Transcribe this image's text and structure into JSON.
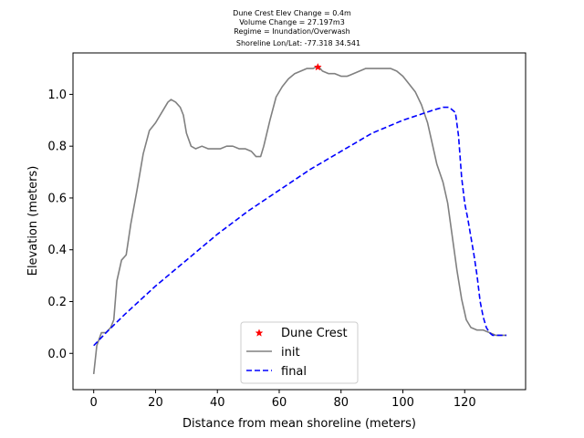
{
  "chart_data": {
    "type": "line",
    "title_lines": [
      "Dune Crest Elev Change = 0.4m",
      "Volume Change = 27.197m3",
      "Regime = Inundation/Overwash",
      "Shoreline Lon/Lat: -77.318 34.541"
    ],
    "xlabel": "Distance from mean shoreline (meters)",
    "ylabel": "Elevation (meters)",
    "xlim": [
      -6.7,
      139.7
    ],
    "ylim": [
      -0.14,
      1.16
    ],
    "xticks": [
      0,
      20,
      40,
      60,
      80,
      100,
      120
    ],
    "yticks": [
      0.0,
      0.2,
      0.4,
      0.6,
      0.8,
      1.0
    ],
    "xtick_labels": [
      "0",
      "20",
      "40",
      "60",
      "80",
      "100",
      "120"
    ],
    "ytick_labels": [
      "0.0",
      "0.2",
      "0.4",
      "0.6",
      "0.8",
      "1.0"
    ],
    "grid": false,
    "legend_position": "lower center",
    "legend": [
      {
        "label": "Dune Crest",
        "color": "#ff0000",
        "marker": "star"
      },
      {
        "label": "init",
        "color": "#808080",
        "style": "solid"
      },
      {
        "label": "final",
        "color": "#0000ff",
        "style": "dashed"
      }
    ],
    "series": [
      {
        "name": "init",
        "color": "#808080",
        "style": "solid",
        "x": [
          0,
          1,
          2.5,
          4,
          5.5,
          6.5,
          7.5,
          9,
          10.5,
          12,
          14,
          16,
          18,
          20,
          22,
          24,
          25,
          26.5,
          28,
          29,
          30,
          31.5,
          33,
          35,
          37,
          39,
          41,
          43,
          45,
          47,
          49,
          51,
          52.5,
          54,
          55,
          57,
          59,
          61,
          63,
          65,
          67,
          69,
          71,
          72.5,
          74,
          76,
          78,
          80,
          82,
          84,
          86,
          88,
          90,
          92,
          94,
          96,
          98,
          100,
          102,
          104,
          106,
          108,
          109.5,
          111,
          113,
          114.5,
          116,
          117.5,
          119,
          120.5,
          122,
          124,
          126,
          128,
          130,
          132,
          133.5
        ],
        "y": [
          -0.08,
          0.03,
          0.08,
          0.08,
          0.1,
          0.13,
          0.28,
          0.36,
          0.38,
          0.5,
          0.63,
          0.77,
          0.86,
          0.89,
          0.93,
          0.97,
          0.98,
          0.97,
          0.95,
          0.92,
          0.85,
          0.8,
          0.79,
          0.8,
          0.79,
          0.79,
          0.79,
          0.8,
          0.8,
          0.79,
          0.79,
          0.78,
          0.76,
          0.76,
          0.8,
          0.9,
          0.99,
          1.03,
          1.06,
          1.08,
          1.09,
          1.1,
          1.1,
          1.11,
          1.09,
          1.08,
          1.08,
          1.07,
          1.07,
          1.08,
          1.09,
          1.1,
          1.1,
          1.1,
          1.1,
          1.1,
          1.09,
          1.07,
          1.04,
          1.01,
          0.96,
          0.89,
          0.81,
          0.73,
          0.66,
          0.58,
          0.45,
          0.32,
          0.21,
          0.13,
          0.1,
          0.09,
          0.09,
          0.08,
          0.07,
          0.07,
          0.07
        ]
      },
      {
        "name": "final",
        "color": "#0000ff",
        "style": "dashed",
        "x": [
          0,
          4,
          10,
          20,
          30,
          40,
          50,
          60,
          70,
          80,
          90,
          100,
          105,
          110,
          113,
          115,
          117,
          118,
          119,
          120,
          121,
          122,
          123,
          124,
          125,
          126,
          127,
          128,
          129,
          130,
          131,
          132,
          133.5
        ],
        "y": [
          0.03,
          0.08,
          0.15,
          0.26,
          0.36,
          0.46,
          0.55,
          0.63,
          0.71,
          0.78,
          0.85,
          0.9,
          0.92,
          0.94,
          0.95,
          0.95,
          0.93,
          0.84,
          0.68,
          0.58,
          0.52,
          0.45,
          0.38,
          0.3,
          0.2,
          0.14,
          0.1,
          0.08,
          0.07,
          0.07,
          0.07,
          0.07,
          0.07
        ]
      }
    ],
    "markers": [
      {
        "name": "Dune Crest",
        "x": 72.5,
        "y": 1.105,
        "color": "#ff0000",
        "marker": "star"
      }
    ]
  }
}
